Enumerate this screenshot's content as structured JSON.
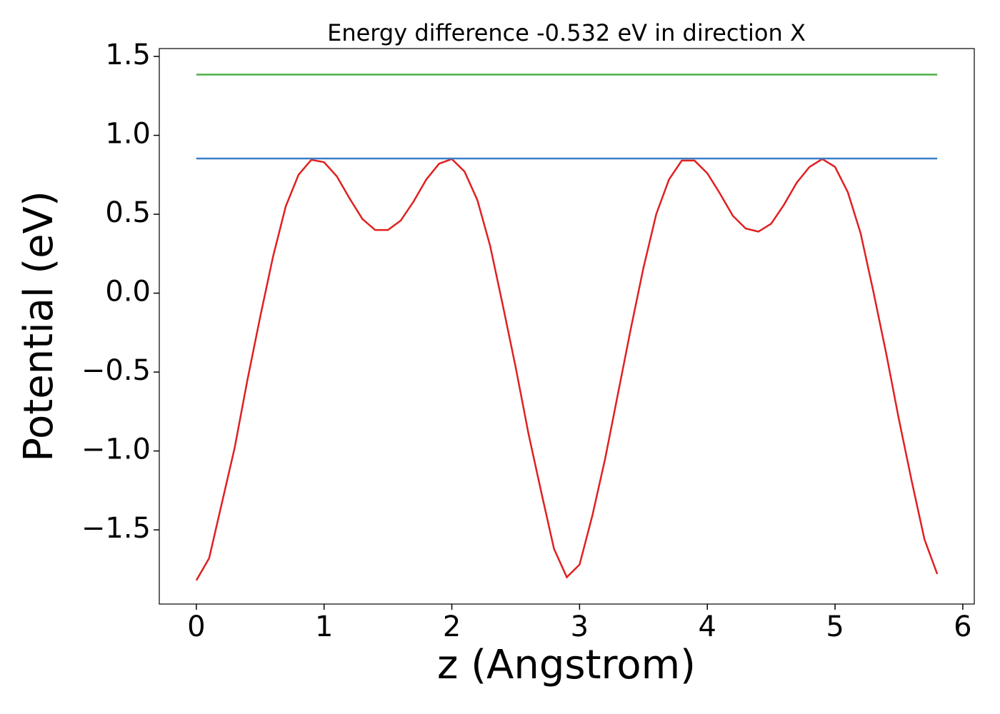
{
  "chart_data": {
    "type": "line",
    "title": "Energy difference -0.532 eV in direction X",
    "xlabel": "z (Angstrom)",
    "ylabel": "Potential (eV)",
    "xlim": [
      -0.29,
      6.09
    ],
    "ylim": [
      -1.97,
      1.55
    ],
    "xticks": [
      0,
      1,
      2,
      3,
      4,
      5,
      6
    ],
    "yticks": [
      {
        "value": -1.5,
        "label": "−1.5"
      },
      {
        "value": -1,
        "label": "−1.0"
      },
      {
        "value": -0.5,
        "label": "−0.5"
      },
      {
        "value": 0,
        "label": "0.0"
      },
      0.5,
      {
        "value": 1,
        "label": "1.0"
      },
      1.5
    ],
    "grid": false,
    "series": [
      {
        "color": "#e02020",
        "x": [
          0,
          0.1,
          0.2,
          0.3,
          0.4,
          0.5,
          0.6,
          0.7,
          0.8,
          0.9,
          1.0,
          1.1,
          1.2,
          1.3,
          1.4,
          1.5,
          1.6,
          1.7,
          1.8,
          1.9,
          2.0,
          2.1,
          2.2,
          2.3,
          2.4,
          2.5,
          2.6,
          2.7,
          2.8,
          2.9,
          3.0,
          3.1,
          3.2,
          3.3,
          3.4,
          3.5,
          3.6,
          3.7,
          3.8,
          3.9,
          4.0,
          4.1,
          4.2,
          4.3,
          4.4,
          4.5,
          4.6,
          4.7,
          4.8,
          4.9,
          5.0,
          5.1,
          5.2,
          5.3,
          5.4,
          5.5,
          5.6,
          5.7,
          5.8
        ],
        "values": [
          -1.82,
          -1.68,
          -1.33,
          -0.98,
          -0.55,
          -0.15,
          0.23,
          0.55,
          0.75,
          0.845,
          0.83,
          0.74,
          0.6,
          0.47,
          0.4,
          0.4,
          0.46,
          0.58,
          0.72,
          0.82,
          0.85,
          0.77,
          0.59,
          0.3,
          -0.08,
          -0.47,
          -0.89,
          -1.26,
          -1.62,
          -1.8,
          -1.72,
          -1.41,
          -1.05,
          -0.64,
          -0.23,
          0.16,
          0.5,
          0.72,
          0.84,
          0.84,
          0.76,
          0.63,
          0.49,
          0.41,
          0.39,
          0.44,
          0.56,
          0.7,
          0.8,
          0.85,
          0.8,
          0.64,
          0.38,
          0.01,
          -0.38,
          -0.8,
          -1.19,
          -1.56,
          -1.78
        ]
      },
      {
        "color": "#3a7ec6",
        "x": [
          0,
          5.8
        ],
        "values": [
          0.853,
          0.853
        ]
      },
      {
        "color": "#4aaf46",
        "x": [
          0,
          5.8
        ],
        "values": [
          1.385,
          1.385
        ]
      }
    ]
  }
}
